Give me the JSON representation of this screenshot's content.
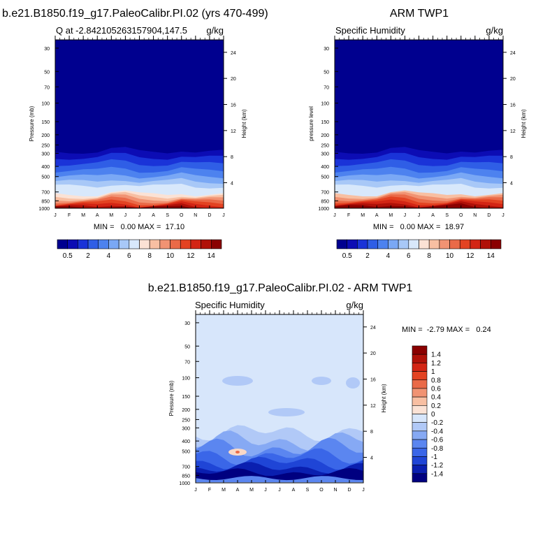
{
  "colors": {
    "diverging": [
      "#00008f",
      "#0c0cb4",
      "#1a33d8",
      "#2f5ee6",
      "#4d82ef",
      "#7aa8f5",
      "#a8c8f7",
      "#d8e8fb",
      "#fbe2d5",
      "#f8bfa2",
      "#f19373",
      "#ea6a48",
      "#e34322",
      "#d32514",
      "#b01108",
      "#8a0000"
    ],
    "q_field": {
      "p30": 0,
      "p200": 0,
      "p300": 1,
      "p400": 3,
      "p500": 5,
      "p600": 6,
      "p700": 7,
      "p850": 11,
      "p1000": 15
    }
  },
  "chart_data": [
    {
      "type": "heatmap",
      "title": "b.e21.B1850.f19_g17.PaleoCalibr.PI.02 (yrs 470-499)",
      "left_label": "Q at -2.842105263157904,147.5",
      "right_label": "g/kg",
      "ylabel": "Pressure (mb)",
      "ylabel_right": "Height (km)",
      "x_ticks": [
        "J",
        "F",
        "M",
        "A",
        "M",
        "J",
        "J",
        "A",
        "S",
        "O",
        "N",
        "D",
        "J"
      ],
      "y_ticks": [
        "30",
        "50",
        "70",
        "100",
        "150",
        "200",
        "250",
        "300",
        "400",
        "500",
        "700",
        "850",
        "1000"
      ],
      "ylim": [
        1000,
        25
      ],
      "height_ticks": [
        "24",
        "20",
        "16",
        "12",
        "8",
        "4"
      ],
      "stats": "MIN =   0.00 MAX =  17.10",
      "colorbar_labels": [
        "0.5",
        "2",
        "4",
        "6",
        "8",
        "10",
        "12",
        "14"
      ],
      "field_summary": "Specific humidity ~0 above 300 mb, increasing to ~17 g/kg near 1000 mb"
    },
    {
      "type": "heatmap",
      "title": "ARM TWP1",
      "left_label": "Specific Humidity",
      "right_label": "g/kg",
      "ylabel": "pressure level",
      "ylabel_right": "Height (km)",
      "x_ticks": [
        "J",
        "F",
        "M",
        "A",
        "M",
        "J",
        "J",
        "A",
        "S",
        "O",
        "N",
        "D",
        "J"
      ],
      "y_ticks": [
        "30",
        "50",
        "70",
        "100",
        "150",
        "200",
        "250",
        "300",
        "400",
        "500",
        "700",
        "850",
        "1000"
      ],
      "ylim": [
        1000,
        25
      ],
      "height_ticks": [
        "24",
        "20",
        "16",
        "12",
        "8",
        "4"
      ],
      "stats": "MIN =   0.00 MAX =  18.97",
      "colorbar_labels": [
        "0.5",
        "2",
        "4",
        "6",
        "8",
        "10",
        "12",
        "14"
      ],
      "field_summary": "Specific humidity ~0 above 300 mb, increasing to ~19 g/kg near 1000 mb"
    },
    {
      "type": "heatmap",
      "title": "b.e21.B1850.f19_g17.PaleoCalibr.PI.02 - ARM TWP1",
      "left_label": "Specific Humidity",
      "right_label": "g/kg",
      "ylabel": "Pressure (mb)",
      "ylabel_right": "Height (km)",
      "x_ticks": [
        "J",
        "F",
        "M",
        "A",
        "M",
        "J",
        "J",
        "A",
        "S",
        "O",
        "N",
        "D",
        "J"
      ],
      "y_ticks": [
        "30",
        "50",
        "70",
        "100",
        "150",
        "200",
        "250",
        "300",
        "400",
        "500",
        "700",
        "850",
        "1000"
      ],
      "ylim": [
        1000,
        25
      ],
      "height_ticks": [
        "24",
        "20",
        "16",
        "12",
        "8",
        "4"
      ],
      "stats": "MIN =  -2.79 MAX =   0.24",
      "colorbar_labels": [
        "1.4",
        "1.2",
        "1",
        "0.8",
        "0.6",
        "0.4",
        "0.2",
        "0",
        "-0.2",
        "-0.4",
        "-0.6",
        "-0.8",
        "-1",
        "-1.2",
        "-1.4"
      ],
      "field_summary": "Difference ~0 above 350 mb, negative (-0.5 to -1.4+) between 500 and 950 mb, small positive spot near 500 mb in April"
    }
  ]
}
